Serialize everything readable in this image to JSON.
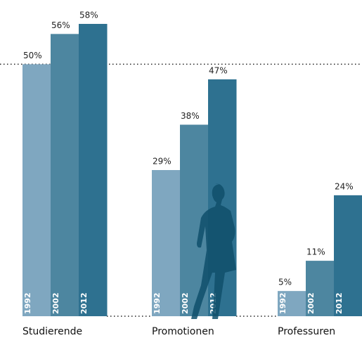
{
  "chart_data": {
    "type": "bar",
    "categories": [
      "Studierende",
      "Promotionen",
      "Professuren"
    ],
    "series": [
      {
        "name": "1992",
        "color": "#7fa7c0",
        "values": [
          50,
          29,
          5
        ],
        "value_labels": [
          "50%",
          "29%",
          "5%"
        ]
      },
      {
        "name": "2002",
        "color": "#4d86a0",
        "values": [
          56,
          38,
          11
        ],
        "value_labels": [
          "56%",
          "38%",
          "11%"
        ]
      },
      {
        "name": "2012",
        "color": "#2e7190",
        "values": [
          58,
          47,
          24
        ],
        "value_labels": [
          "58%",
          "47%",
          "24%"
        ]
      }
    ],
    "reference_line": 50
  }
}
